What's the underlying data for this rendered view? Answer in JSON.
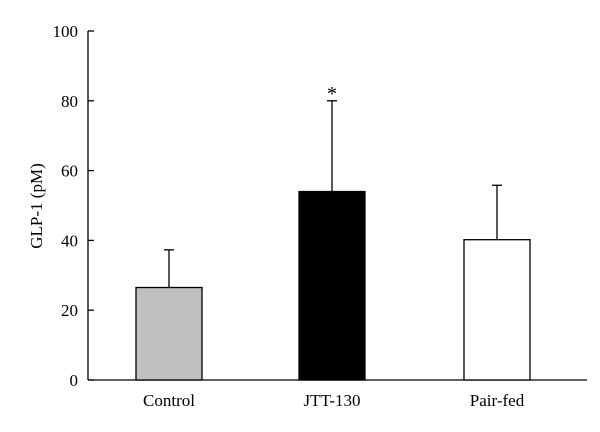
{
  "chart_data": {
    "type": "bar",
    "categories": [
      "Control",
      "JTT-130",
      "Pair-fed"
    ],
    "values": [
      26.5,
      54,
      40.2
    ],
    "error_upper": [
      37.3,
      80,
      55.8
    ],
    "bar_colors": [
      "#c0c0c0",
      "#000000",
      "#ffffff"
    ],
    "annotations": [
      "",
      "*",
      ""
    ],
    "title": "",
    "xlabel": "",
    "ylabel": "GLP-1 (pM)",
    "ylim": [
      0,
      100
    ],
    "yticks": [
      0,
      20,
      40,
      60,
      80,
      100
    ],
    "grid": false,
    "legend": "none"
  }
}
